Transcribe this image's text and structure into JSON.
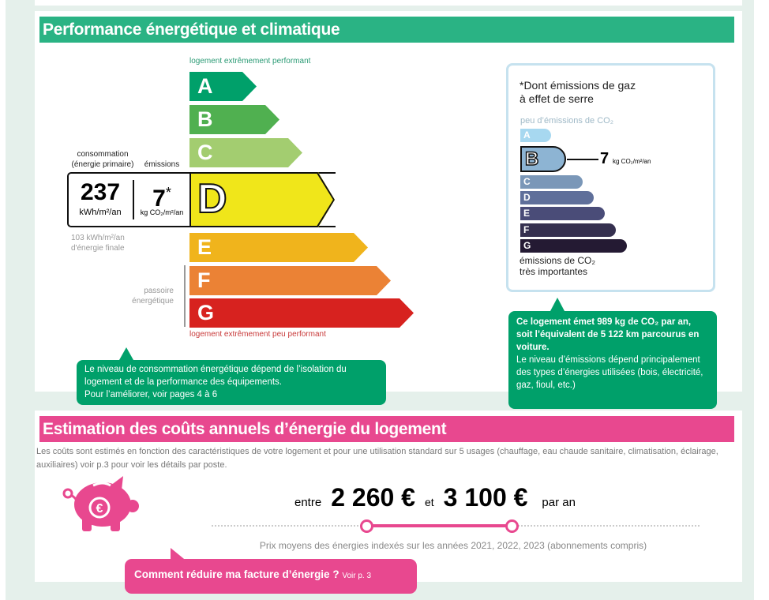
{
  "energy": {
    "title": "Performance énergétique et climatique",
    "top_label": "logement extrêmement performant",
    "bottom_label": "logement extrêmement peu performant",
    "classes": [
      {
        "letter": "A",
        "color": "#00a06a"
      },
      {
        "letter": "B",
        "color": "#50b050"
      },
      {
        "letter": "C",
        "color": "#a3cd70"
      },
      {
        "letter": "D",
        "color": "#f0e61a"
      },
      {
        "letter": "E",
        "color": "#f0b41c"
      },
      {
        "letter": "F",
        "color": "#eb8235"
      },
      {
        "letter": "G",
        "color": "#d7221f"
      }
    ],
    "current_class": "D",
    "consumption_label": "consommation\n(énergie primaire)",
    "emissions_label": "émissions",
    "consumption_value": "237",
    "consumption_unit": "kWh/m²/an",
    "emissions_value": "7",
    "emissions_star": "*",
    "emissions_unit": "kg CO₂/m²/an",
    "final_energy": "103 kWh/m²/an\nd'énergie finale",
    "passoire": "passoire\nénergétique",
    "tooltip": "Le niveau de consommation énergétique dépend de l’isolation du logement et de la performance des équipements.\nPour l’améliorer, voir pages 4 à 6"
  },
  "ges": {
    "title": "*Dont émissions de gaz\nà effet de serre",
    "top_label": "peu d’émissions de CO₂",
    "bottom_label": "émissions de CO₂\ntrès importantes",
    "classes": [
      {
        "letter": "A",
        "color": "#a7d8f0"
      },
      {
        "letter": "B",
        "color": "#8db4d3"
      },
      {
        "letter": "C",
        "color": "#7a97b8"
      },
      {
        "letter": "D",
        "color": "#5f6f9a"
      },
      {
        "letter": "E",
        "color": "#4a4c78"
      },
      {
        "letter": "F",
        "color": "#35304f"
      },
      {
        "letter": "G",
        "color": "#241a33"
      }
    ],
    "current_class": "B",
    "value": "7",
    "unit": "kg CO₂/m²/an",
    "tooltip_bold": "Ce logement émet 989 kg de CO₂ par an, soit l’équivalent de 5 122 km parcourus en voiture.",
    "tooltip": "Le niveau d’émissions dépend principalement des types d’énergies utilisées (bois, électricité, gaz, fioul, etc.)"
  },
  "costs": {
    "title": "Estimation des coûts annuels d’énergie du logement",
    "description": "Les coûts sont estimés en fonction des caractéristiques de votre logement et pour une utilisation standard sur 5 usages (chauffage, eau chaude sanitaire, climatisation, éclairage, auxiliaires) voir p.3 pour voir les détails par poste.",
    "between": "entre",
    "min": "2 260 €",
    "and": "et",
    "max": "3 100 €",
    "per_year": "par an",
    "note": "Prix moyens des énergies indexés sur les années 2021, 2022, 2023 (abonnements compris)",
    "tip": "Comment réduire ma facture d’énergie ?",
    "tip_ref": "Voir p. 3",
    "accent": "#e8488f"
  }
}
